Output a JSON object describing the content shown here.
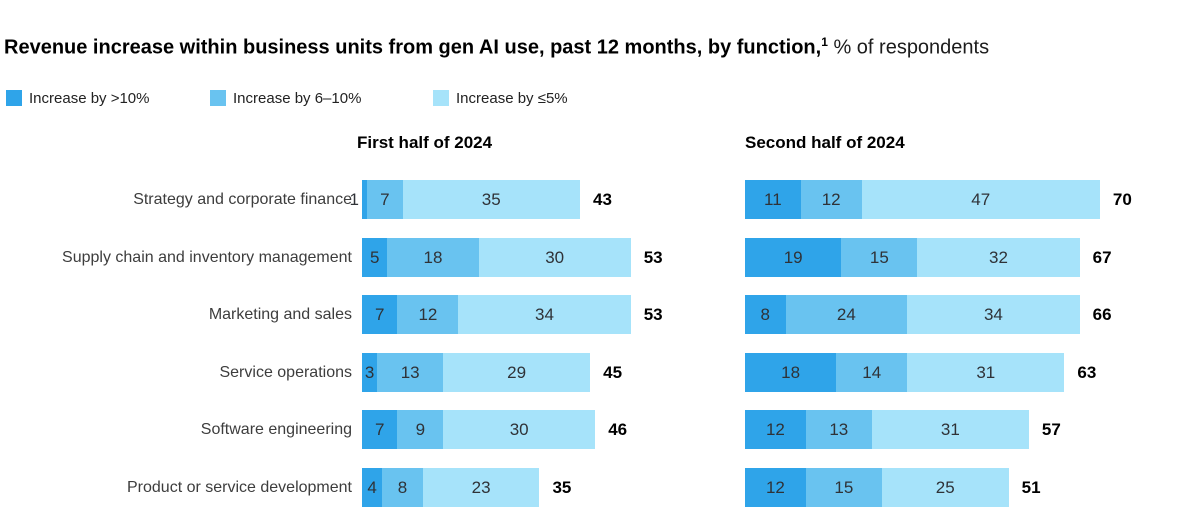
{
  "title": {
    "main": "Revenue increase within business units from gen AI use, past 12 months, by function,",
    "footnote_marker": "1",
    "suffix": "% of respondents"
  },
  "legend": {
    "items": [
      {
        "label": "Increase by >10%",
        "color": "#2FA4E9"
      },
      {
        "label": "Increase by 6–10%",
        "color": "#69C3F0"
      },
      {
        "label": "Increase by ≤5%",
        "color": "#A6E3FA"
      }
    ]
  },
  "chart_data": {
    "type": "bar",
    "orientation": "horizontal",
    "stacked": true,
    "value_unit": "% of respondents",
    "grid": false,
    "legend_position": "top-left",
    "xlim": [
      0,
      75
    ],
    "colors": [
      "#2FA4E9",
      "#69C3F0",
      "#A6E3FA"
    ],
    "categories": [
      "Strategy and corporate finance",
      "Supply chain and inventory management",
      "Marketing and sales",
      "Service operations",
      "Software engineering",
      "Product or service development"
    ],
    "panels": [
      {
        "title": "First half of 2024",
        "series": [
          {
            "name": "Increase by >10%",
            "values": [
              1,
              5,
              7,
              3,
              7,
              4
            ]
          },
          {
            "name": "Increase by 6–10%",
            "values": [
              7,
              18,
              12,
              13,
              9,
              8
            ]
          },
          {
            "name": "Increase by ≤5%",
            "values": [
              35,
              30,
              34,
              29,
              30,
              23
            ]
          }
        ],
        "totals": [
          43,
          53,
          53,
          45,
          46,
          35
        ]
      },
      {
        "title": "Second half of 2024",
        "series": [
          {
            "name": "Increase by >10%",
            "values": [
              11,
              19,
              8,
              18,
              12,
              12
            ]
          },
          {
            "name": "Increase by 6–10%",
            "values": [
              12,
              15,
              24,
              14,
              13,
              15
            ]
          },
          {
            "name": "Increase by ≤5%",
            "values": [
              47,
              32,
              34,
              31,
              31,
              25
            ]
          }
        ],
        "totals": [
          70,
          67,
          66,
          63,
          57,
          51
        ]
      }
    ]
  }
}
